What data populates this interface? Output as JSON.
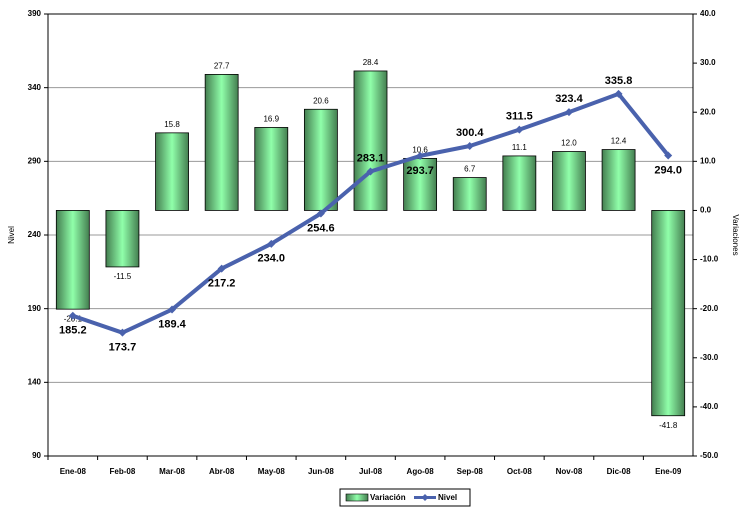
{
  "chart_data": {
    "type": "bar-line",
    "categories": [
      "Ene-08",
      "Feb-08",
      "Mar-08",
      "Abr-08",
      "May-08",
      "Jun-08",
      "Jul-08",
      "Ago-08",
      "Sep-08",
      "Oct-08",
      "Nov-08",
      "Dic-08",
      "Ene-09"
    ],
    "series": [
      {
        "name": "Variación",
        "type": "bar",
        "axis": "y2",
        "color": "#5aa86a",
        "negative_label_color": "#e03030",
        "values": [
          -20.1,
          -11.5,
          15.8,
          27.7,
          16.9,
          20.6,
          28.4,
          10.6,
          6.7,
          11.1,
          12.0,
          12.4,
          -41.8
        ],
        "value_labels": [
          "-20.1",
          "-11.5",
          "15.8",
          "27.7",
          "16.9",
          "20.6",
          "28.4",
          "10.6",
          "6.7",
          "11.1",
          "12.0",
          "12.4",
          "-41.8"
        ]
      },
      {
        "name": "Nivel",
        "type": "line",
        "axis": "y",
        "color": "#4a62ad",
        "values": [
          185.2,
          173.7,
          189.4,
          217.2,
          234.0,
          254.6,
          283.1,
          293.7,
          300.4,
          311.5,
          323.4,
          335.8,
          294.0
        ],
        "value_labels": [
          "185.2",
          "173.7",
          "189.4",
          "217.2",
          "234.0",
          "254.6",
          "283.1",
          "293.7",
          "300.4",
          "311.5",
          "323.4",
          "335.8",
          "294.0"
        ]
      }
    ],
    "ylabel": "Nivel",
    "y2label": "Variaciones",
    "ylim": [
      90,
      390
    ],
    "yticks": [
      90,
      140,
      190,
      240,
      290,
      340,
      390
    ],
    "y2lim": [
      -50,
      40
    ],
    "y2ticks": [
      {
        "value": -50,
        "label": "-50.0"
      },
      {
        "value": -40,
        "label": "-40.0"
      },
      {
        "value": -30,
        "label": "-30.0"
      },
      {
        "value": -20,
        "label": "-20.0"
      },
      {
        "value": -10,
        "label": "-10.0"
      },
      {
        "value": 0,
        "label": "0.0"
      },
      {
        "value": 10,
        "label": "10.0"
      },
      {
        "value": 20,
        "label": "20.0"
      },
      {
        "value": 30,
        "label": "30.0"
      },
      {
        "value": 40,
        "label": "40.0"
      }
    ],
    "grid": true,
    "legend": "bottom"
  }
}
